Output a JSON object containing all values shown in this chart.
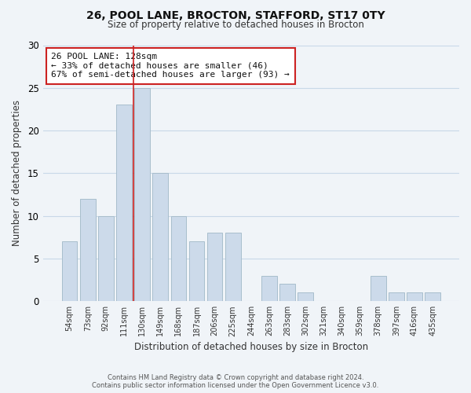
{
  "title": "26, POOL LANE, BROCTON, STAFFORD, ST17 0TY",
  "subtitle": "Size of property relative to detached houses in Brocton",
  "xlabel": "Distribution of detached houses by size in Brocton",
  "ylabel": "Number of detached properties",
  "bar_labels": [
    "54sqm",
    "73sqm",
    "92sqm",
    "111sqm",
    "130sqm",
    "149sqm",
    "168sqm",
    "187sqm",
    "206sqm",
    "225sqm",
    "244sqm",
    "263sqm",
    "283sqm",
    "302sqm",
    "321sqm",
    "340sqm",
    "359sqm",
    "378sqm",
    "397sqm",
    "416sqm",
    "435sqm"
  ],
  "bar_values": [
    7,
    12,
    10,
    23,
    25,
    15,
    10,
    7,
    8,
    8,
    0,
    3,
    2,
    1,
    0,
    0,
    0,
    3,
    1,
    1,
    1
  ],
  "bar_color": "#ccdaea",
  "bar_edge_color": "#a8becc",
  "highlight_line_color": "#cc2222",
  "ylim": [
    0,
    30
  ],
  "annotation_title": "26 POOL LANE: 128sqm",
  "annotation_line1": "← 33% of detached houses are smaller (46)",
  "annotation_line2": "67% of semi-detached houses are larger (93) →",
  "annotation_box_color": "#ffffff",
  "annotation_box_edge": "#cc2222",
  "footer_line1": "Contains HM Land Registry data © Crown copyright and database right 2024.",
  "footer_line2": "Contains public sector information licensed under the Open Government Licence v3.0.",
  "bg_color": "#f0f4f8",
  "grid_color": "#c8d8e8"
}
